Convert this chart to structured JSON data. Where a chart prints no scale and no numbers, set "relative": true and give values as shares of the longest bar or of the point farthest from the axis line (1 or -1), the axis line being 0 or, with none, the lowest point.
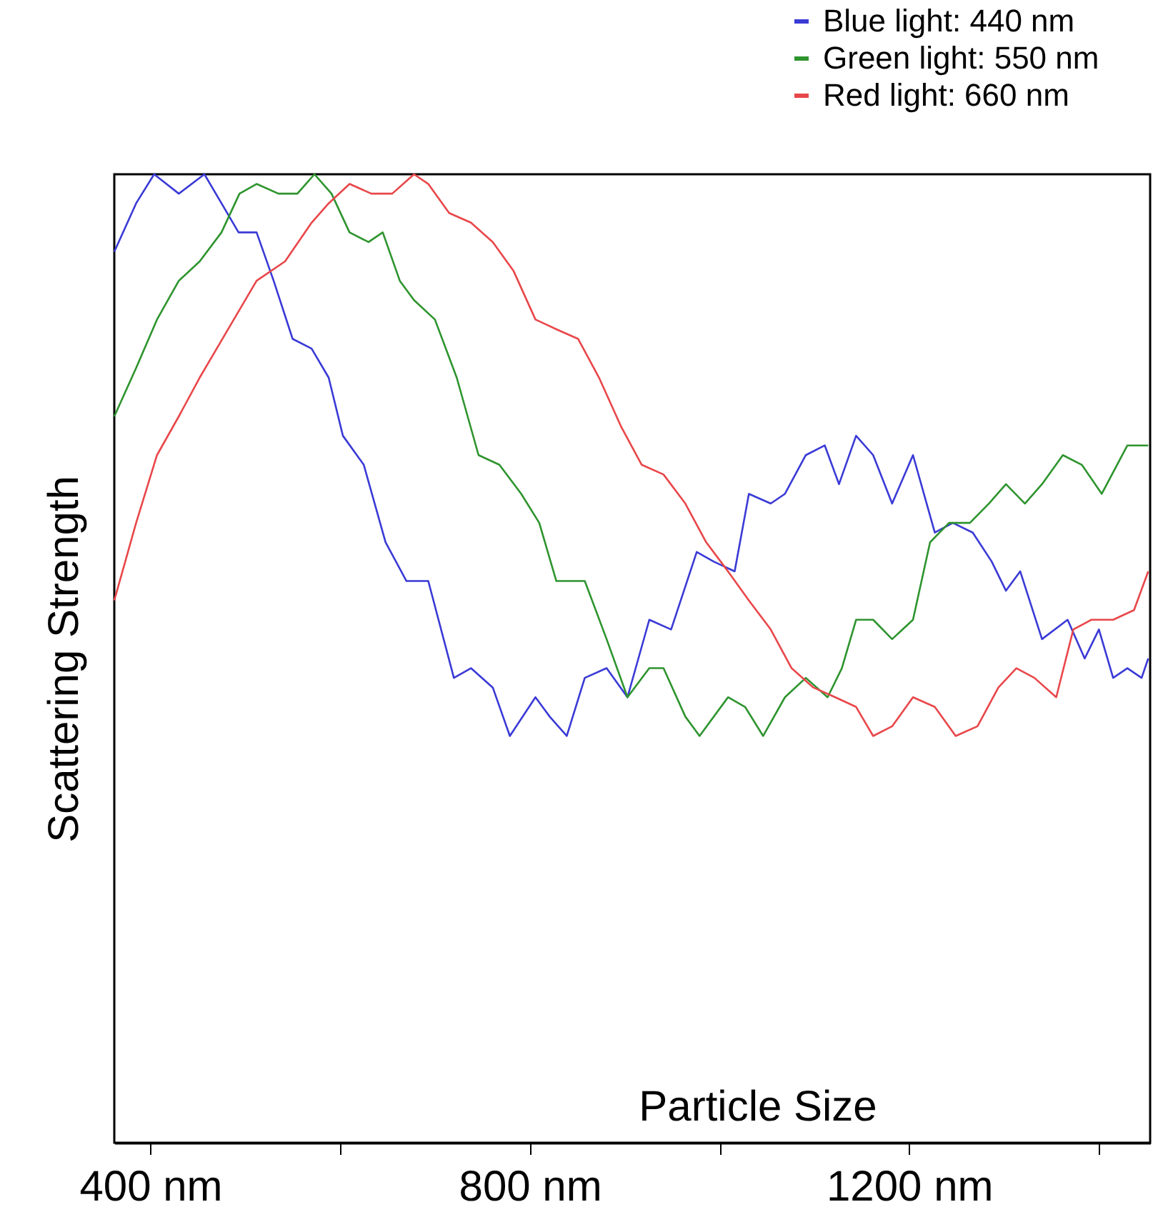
{
  "chart_data": {
    "type": "line",
    "xlabel": "Particle Size",
    "ylabel": "Scattering Strength",
    "relative": true,
    "xlim": [
      362,
      1454
    ],
    "xticks": [
      {
        "value": 400,
        "label": "400 nm"
      },
      {
        "value": 600,
        "label": null
      },
      {
        "value": 800,
        "label": "800 nm"
      },
      {
        "value": 1000,
        "label": null
      },
      {
        "value": 1200,
        "label": "1200 nm"
      },
      {
        "value": 1400,
        "label": null
      }
    ],
    "legend": "top right",
    "grid": false,
    "series": [
      {
        "name": "Blue light: 440 nm",
        "color": "#3a3ad6",
        "x": [
          362,
          385,
          404,
          430,
          457,
          475,
          493,
          512,
          530,
          550,
          570,
          588,
          603,
          625,
          648,
          670,
          693,
          720,
          738,
          761,
          779,
          806,
          821,
          839,
          858,
          881,
          903,
          926,
          949,
          976,
          994,
          1016,
          1031,
          1054,
          1069,
          1091,
          1111,
          1126,
          1144,
          1162,
          1182,
          1204,
          1227,
          1246,
          1267,
          1287,
          1302,
          1317,
          1340,
          1367,
          1385,
          1400,
          1415,
          1430,
          1445,
          1452
        ],
        "values": [
          0.92,
          0.97,
          1.0,
          0.98,
          1.0,
          0.97,
          0.94,
          0.94,
          0.89,
          0.83,
          0.82,
          0.79,
          0.73,
          0.7,
          0.62,
          0.58,
          0.58,
          0.48,
          0.49,
          0.47,
          0.42,
          0.46,
          0.44,
          0.42,
          0.48,
          0.49,
          0.46,
          0.54,
          0.53,
          0.61,
          0.6,
          0.59,
          0.67,
          0.66,
          0.67,
          0.71,
          0.72,
          0.68,
          0.73,
          0.71,
          0.66,
          0.71,
          0.63,
          0.64,
          0.63,
          0.6,
          0.57,
          0.59,
          0.52,
          0.54,
          0.5,
          0.53,
          0.48,
          0.49,
          0.48,
          0.5
        ]
      },
      {
        "name": "Green light: 550 nm",
        "color": "#2e942e",
        "x": [
          362,
          385,
          407,
          430,
          452,
          475,
          494,
          512,
          535,
          555,
          573,
          591,
          610,
          630,
          645,
          663,
          678,
          700,
          723,
          746,
          768,
          791,
          810,
          828,
          858,
          881,
          903,
          926,
          941,
          964,
          979,
          1009,
          1027,
          1046,
          1069,
          1091,
          1114,
          1129,
          1144,
          1162,
          1182,
          1204,
          1222,
          1242,
          1264,
          1284,
          1302,
          1322,
          1340,
          1362,
          1382,
          1403,
          1430,
          1445,
          1452
        ],
        "values": [
          0.75,
          0.8,
          0.85,
          0.89,
          0.91,
          0.94,
          0.98,
          0.99,
          0.98,
          0.98,
          1.0,
          0.98,
          0.94,
          0.93,
          0.94,
          0.89,
          0.87,
          0.85,
          0.79,
          0.71,
          0.7,
          0.67,
          0.64,
          0.58,
          0.58,
          0.52,
          0.46,
          0.49,
          0.49,
          0.44,
          0.42,
          0.46,
          0.45,
          0.42,
          0.46,
          0.48,
          0.46,
          0.49,
          0.54,
          0.54,
          0.52,
          0.54,
          0.62,
          0.64,
          0.64,
          0.66,
          0.68,
          0.66,
          0.68,
          0.71,
          0.7,
          0.67,
          0.72,
          0.72,
          0.72
        ]
      },
      {
        "name": "Red light: 660 nm",
        "color": "#e8474a",
        "x": [
          362,
          385,
          407,
          430,
          452,
          482,
          512,
          542,
          570,
          588,
          610,
          633,
          655,
          678,
          693,
          715,
          738,
          761,
          783,
          806,
          828,
          851,
          873,
          896,
          918,
          941,
          964,
          986,
          1009,
          1031,
          1054,
          1076,
          1099,
          1122,
          1144,
          1162,
          1182,
          1204,
          1227,
          1249,
          1272,
          1294,
          1313,
          1332,
          1355,
          1373,
          1392,
          1415,
          1437,
          1452
        ],
        "values": [
          0.56,
          0.64,
          0.71,
          0.75,
          0.79,
          0.84,
          0.89,
          0.91,
          0.95,
          0.97,
          0.99,
          0.98,
          0.98,
          1.0,
          0.99,
          0.96,
          0.95,
          0.93,
          0.9,
          0.85,
          0.84,
          0.83,
          0.79,
          0.74,
          0.7,
          0.69,
          0.66,
          0.62,
          0.59,
          0.56,
          0.53,
          0.49,
          0.47,
          0.46,
          0.45,
          0.42,
          0.43,
          0.46,
          0.45,
          0.42,
          0.43,
          0.47,
          0.49,
          0.48,
          0.46,
          0.53,
          0.54,
          0.54,
          0.55,
          0.59
        ]
      }
    ]
  }
}
